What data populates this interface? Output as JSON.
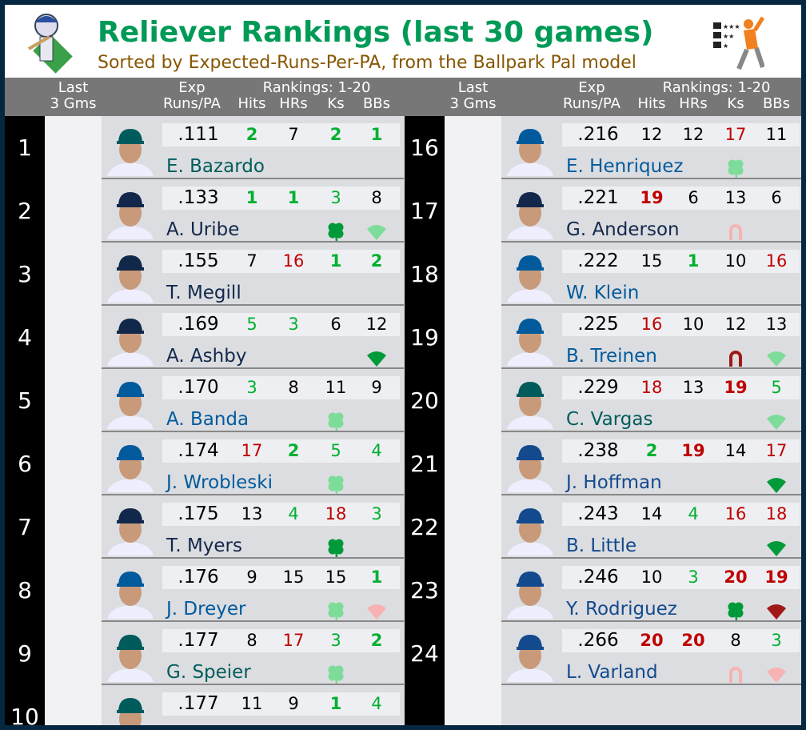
{
  "title": "Reliever Rankings (last 30 games)",
  "subtitle": "Sorted by Expected-Runs-Per-PA, from the Ballpark Pal model",
  "header": {
    "last3": "Last\n3 Gms",
    "exp": "Exp\nRuns/PA",
    "rankings": "Rankings: 1-20",
    "hits": "Hits",
    "hrs": "HRs",
    "ks": "Ks",
    "bbs": "BBs"
  },
  "colors": {
    "title": "#009a57",
    "subtitle": "#875600",
    "header_bg": "#777777",
    "SEA": "#005c5c",
    "MIL": "#12284b",
    "LAD": "#005a9c",
    "TOR": "#134a8e",
    "rank_good_bold": "#00b030",
    "rank_bad": "#c00000"
  },
  "columns": [
    {
      "rows": [
        {
          "rank": "1",
          "team": "SEA",
          "exp": ".111",
          "name": "E. Bazardo",
          "stats": [
            [
              "2",
              "bg"
            ],
            [
              "7",
              "k"
            ],
            [
              "2",
              "bg"
            ],
            [
              "1",
              "bg"
            ]
          ],
          "icons": []
        },
        {
          "rank": "2",
          "team": "MIL",
          "exp": ".133",
          "name": "A. Uribe",
          "stats": [
            [
              "1",
              "bg"
            ],
            [
              "1",
              "bg"
            ],
            [
              "3",
              "g"
            ],
            [
              "8",
              "k"
            ]
          ],
          "icons": [
            {
              "col": "ks",
              "type": "clover",
              "color": "#009a3a"
            },
            {
              "col": "bbs",
              "type": "diamond",
              "color": "#7ddc9a"
            }
          ]
        },
        {
          "rank": "3",
          "team": "MIL",
          "exp": ".155",
          "name": "T. Megill",
          "stats": [
            [
              "7",
              "k"
            ],
            [
              "16",
              "r"
            ],
            [
              "1",
              "bg"
            ],
            [
              "2",
              "bg"
            ]
          ],
          "icons": []
        },
        {
          "rank": "4",
          "team": "MIL",
          "exp": ".169",
          "name": "A. Ashby",
          "stats": [
            [
              "5",
              "g"
            ],
            [
              "3",
              "g"
            ],
            [
              "6",
              "k"
            ],
            [
              "12",
              "k"
            ]
          ],
          "icons": [
            {
              "col": "bbs",
              "type": "diamond",
              "color": "#009a3a"
            }
          ]
        },
        {
          "rank": "5",
          "team": "LAD",
          "exp": ".170",
          "name": "A. Banda",
          "stats": [
            [
              "3",
              "g"
            ],
            [
              "8",
              "k"
            ],
            [
              "11",
              "k"
            ],
            [
              "9",
              "k"
            ]
          ],
          "icons": [
            {
              "col": "ks",
              "type": "clover",
              "color": "#7ddc9a"
            }
          ]
        },
        {
          "rank": "6",
          "team": "LAD",
          "exp": ".174",
          "name": "J. Wrobleski",
          "stats": [
            [
              "17",
              "r"
            ],
            [
              "2",
              "bg"
            ],
            [
              "5",
              "g"
            ],
            [
              "4",
              "g"
            ]
          ],
          "icons": [
            {
              "col": "ks",
              "type": "clover",
              "color": "#7ddc9a"
            }
          ]
        },
        {
          "rank": "7",
          "team": "MIL",
          "exp": ".175",
          "name": "T. Myers",
          "stats": [
            [
              "13",
              "k"
            ],
            [
              "4",
              "g"
            ],
            [
              "18",
              "r"
            ],
            [
              "3",
              "g"
            ]
          ],
          "icons": [
            {
              "col": "ks",
              "type": "clover",
              "color": "#009a3a"
            }
          ]
        },
        {
          "rank": "8",
          "team": "LAD",
          "exp": ".176",
          "name": "J. Dreyer",
          "stats": [
            [
              "9",
              "k"
            ],
            [
              "15",
              "k"
            ],
            [
              "15",
              "k"
            ],
            [
              "1",
              "bg"
            ]
          ],
          "icons": [
            {
              "col": "ks",
              "type": "clover",
              "color": "#7ddc9a"
            },
            {
              "col": "bbs",
              "type": "diamond",
              "color": "#f7b3b3"
            }
          ]
        },
        {
          "rank": "9",
          "team": "SEA",
          "exp": ".177",
          "name": "G. Speier",
          "stats": [
            [
              "8",
              "k"
            ],
            [
              "17",
              "r"
            ],
            [
              "3",
              "g"
            ],
            [
              "2",
              "bg"
            ]
          ],
          "icons": [
            {
              "col": "ks",
              "type": "clover",
              "color": "#7ddc9a"
            }
          ]
        },
        {
          "rank": "10",
          "team": "SEA",
          "exp": ".177",
          "name": "",
          "stats": [
            [
              "11",
              "k"
            ],
            [
              "9",
              "k"
            ],
            [
              "1",
              "bg"
            ],
            [
              "4",
              "g"
            ]
          ],
          "icons": []
        }
      ]
    },
    {
      "rows": [
        {
          "rank": "16",
          "team": "LAD",
          "exp": ".216",
          "name": "E. Henriquez",
          "stats": [
            [
              "12",
              "k"
            ],
            [
              "12",
              "k"
            ],
            [
              "17",
              "r"
            ],
            [
              "11",
              "k"
            ]
          ],
          "icons": [
            {
              "col": "ks",
              "type": "clover",
              "color": "#7ddc9a"
            }
          ]
        },
        {
          "rank": "17",
          "team": "MIL",
          "exp": ".221",
          "name": "G. Anderson",
          "stats": [
            [
              "19",
              "br"
            ],
            [
              "6",
              "k"
            ],
            [
              "13",
              "k"
            ],
            [
              "6",
              "k"
            ]
          ],
          "icons": [
            {
              "col": "ks",
              "type": "horseshoe",
              "color": "#f7b3b3"
            }
          ]
        },
        {
          "rank": "18",
          "team": "LAD",
          "exp": ".222",
          "name": "W. Klein",
          "stats": [
            [
              "15",
              "k"
            ],
            [
              "1",
              "bg"
            ],
            [
              "10",
              "k"
            ],
            [
              "16",
              "r"
            ]
          ],
          "icons": []
        },
        {
          "rank": "19",
          "team": "LAD",
          "exp": ".225",
          "name": "B. Treinen",
          "stats": [
            [
              "16",
              "r"
            ],
            [
              "10",
              "k"
            ],
            [
              "12",
              "k"
            ],
            [
              "13",
              "k"
            ]
          ],
          "icons": [
            {
              "col": "ks",
              "type": "horseshoe",
              "color": "#a01818"
            },
            {
              "col": "bbs",
              "type": "diamond",
              "color": "#7ddc9a"
            }
          ]
        },
        {
          "rank": "20",
          "team": "SEA",
          "exp": ".229",
          "name": "C. Vargas",
          "stats": [
            [
              "18",
              "r"
            ],
            [
              "13",
              "k"
            ],
            [
              "19",
              "br"
            ],
            [
              "5",
              "g"
            ]
          ],
          "icons": [
            {
              "col": "bbs",
              "type": "diamond",
              "color": "#7ddc9a"
            }
          ]
        },
        {
          "rank": "21",
          "team": "TOR",
          "exp": ".238",
          "name": "J. Hoffman",
          "stats": [
            [
              "2",
              "bg"
            ],
            [
              "19",
              "br"
            ],
            [
              "14",
              "k"
            ],
            [
              "17",
              "r"
            ]
          ],
          "icons": [
            {
              "col": "bbs",
              "type": "diamond",
              "color": "#009a3a"
            }
          ]
        },
        {
          "rank": "22",
          "team": "TOR",
          "exp": ".243",
          "name": "B. Little",
          "stats": [
            [
              "14",
              "k"
            ],
            [
              "4",
              "g"
            ],
            [
              "16",
              "r"
            ],
            [
              "18",
              "r"
            ]
          ],
          "icons": [
            {
              "col": "bbs",
              "type": "diamond",
              "color": "#009a3a"
            }
          ]
        },
        {
          "rank": "23",
          "team": "TOR",
          "exp": ".246",
          "name": "Y. Rodriguez",
          "stats": [
            [
              "10",
              "k"
            ],
            [
              "3",
              "g"
            ],
            [
              "20",
              "br"
            ],
            [
              "19",
              "br"
            ]
          ],
          "icons": [
            {
              "col": "ks",
              "type": "clover",
              "color": "#009a3a"
            },
            {
              "col": "bbs",
              "type": "diamond",
              "color": "#a01818"
            }
          ]
        },
        {
          "rank": "24",
          "team": "TOR",
          "exp": ".266",
          "name": "L. Varland",
          "stats": [
            [
              "20",
              "br"
            ],
            [
              "20",
              "br"
            ],
            [
              "8",
              "k"
            ],
            [
              "3",
              "g"
            ]
          ],
          "icons": [
            {
              "col": "ks",
              "type": "horseshoe",
              "color": "#f7b3b3"
            },
            {
              "col": "bbs",
              "type": "diamond",
              "color": "#f7b3b3"
            }
          ]
        }
      ]
    }
  ]
}
